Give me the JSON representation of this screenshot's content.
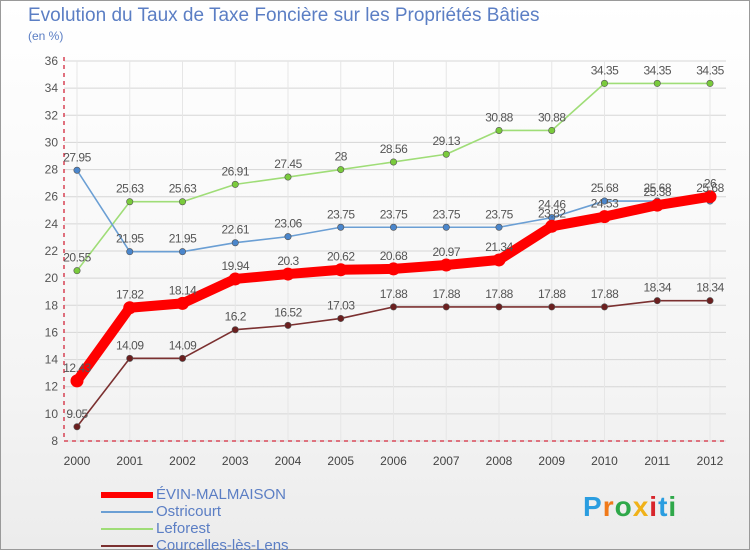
{
  "title": "Evolution du Taux de Taxe Foncière sur les Propriétés Bâties",
  "subtitle": "(en %)",
  "chart_data": {
    "type": "line",
    "title": "Evolution du Taux de Taxe Foncière sur les Propriétés Bâties",
    "ylabel": "(en %)",
    "xlabel": "",
    "ylim": [
      8,
      36
    ],
    "y_ticks": [
      "8",
      "10",
      "12",
      "14",
      "16",
      "18",
      "20",
      "22",
      "24",
      "26",
      "28",
      "30",
      "32",
      "34",
      "36"
    ],
    "categories": [
      "2000",
      "2001",
      "2002",
      "2003",
      "2004",
      "2005",
      "2006",
      "2007",
      "2008",
      "2009",
      "2010",
      "2011",
      "2012"
    ],
    "grid": "horizontal",
    "legend_position": "bottom-left",
    "series": [
      {
        "name": "ÉVIN-MALMAISON",
        "color": "#ff0000",
        "point_color": "#ff0000",
        "values": [
          12.43,
          17.82,
          18.14,
          19.94,
          20.3,
          20.62,
          20.68,
          20.97,
          21.34,
          23.82,
          24.53,
          25.38,
          26
        ],
        "labels": [
          "12.43",
          "17.82",
          "18.14",
          "19.94",
          "20.3",
          "20.62",
          "20.68",
          "20.97",
          "21.34",
          "23.82",
          "24.53",
          "25.38",
          "26"
        ]
      },
      {
        "name": "Ostricourt",
        "color": "#6b9fd4",
        "point_color": "#4a86cc",
        "values": [
          27.95,
          21.95,
          21.95,
          22.61,
          23.06,
          23.75,
          23.75,
          23.75,
          23.75,
          24.46,
          25.68,
          25.68,
          25.68
        ],
        "labels": [
          "27.95",
          "21.95",
          "21.95",
          "22.61",
          "23.06",
          "23.75",
          "23.75",
          "23.75",
          "23.75",
          "24.46",
          "25.68",
          "25.68",
          "25.68"
        ]
      },
      {
        "name": "Leforest",
        "color": "#9fdd77",
        "point_color": "#7acb3c",
        "values": [
          20.55,
          25.63,
          25.63,
          26.91,
          27.45,
          28,
          28.56,
          29.13,
          30.88,
          30.88,
          34.35,
          34.35,
          34.35
        ],
        "labels": [
          "20.55",
          "25.63",
          "25.63",
          "26.91",
          "27.45",
          "28",
          "28.56",
          "29.13",
          "30.88",
          "30.88",
          "34.35",
          "34.35",
          "34.35"
        ]
      },
      {
        "name": "Courcelles-lès-Lens",
        "color": "#7b3030",
        "point_color": "#6b1f1f",
        "values": [
          9.05,
          14.09,
          14.09,
          16.2,
          16.52,
          17.03,
          17.88,
          17.88,
          17.88,
          17.88,
          17.88,
          18.34,
          18.34
        ],
        "labels": [
          "9.05",
          "14.09",
          "14.09",
          "16.2",
          "16.52",
          "17.03",
          "17.88",
          "17.88",
          "17.88",
          "17.88",
          "17.88",
          "18.34",
          "18.34"
        ]
      }
    ]
  },
  "legend": [
    {
      "label": "ÉVIN-MALMAISON"
    },
    {
      "label": "Ostricourt"
    },
    {
      "label": "Leforest"
    },
    {
      "label": "Courcelles-lès-Lens"
    }
  ],
  "logo": {
    "text": "Proxiti",
    "letters": [
      "P",
      "r",
      "o",
      "x",
      "i",
      "t",
      "i"
    ],
    "colors": [
      "#2a9de0",
      "#f07a1a",
      "#2fa84a",
      "#f0b21a",
      "#d7262c",
      "#2a9de0",
      "#2fa84a"
    ]
  }
}
